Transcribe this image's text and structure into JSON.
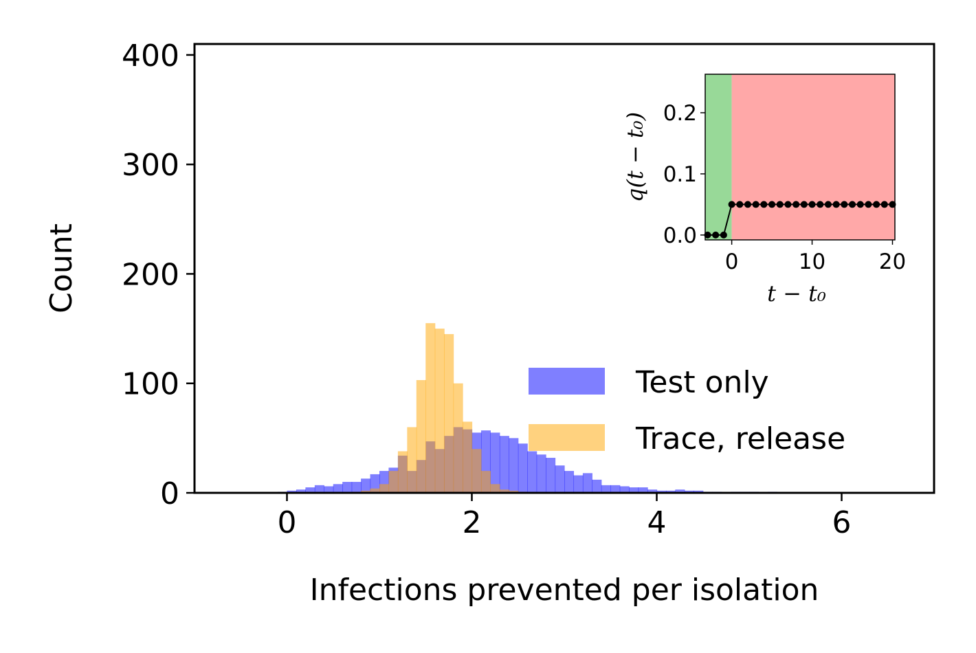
{
  "chart_data": [
    {
      "type": "histogram",
      "xlabel": "Infections prevented per isolation",
      "ylabel": "Count",
      "xlim": [
        -1.0,
        7.0
      ],
      "ylim": [
        0,
        410
      ],
      "xticks": [
        0,
        2,
        4,
        6
      ],
      "yticks": [
        0,
        100,
        200,
        300,
        400
      ],
      "bin_width": 0.1,
      "legend_position": "lower-right",
      "series": [
        {
          "name": "Test only",
          "color": "#0000ff",
          "alpha": 0.5,
          "bin_start": -0.1,
          "counts": [
            1,
            2,
            3,
            5,
            7,
            6,
            8,
            10,
            10,
            13,
            17,
            20,
            23,
            34,
            20,
            30,
            47,
            40,
            52,
            60,
            58,
            55,
            57,
            55,
            52,
            50,
            45,
            38,
            35,
            32,
            25,
            20,
            16,
            18,
            12,
            7,
            7,
            6,
            5,
            5,
            3,
            2,
            2,
            3,
            2,
            2,
            1,
            1,
            0,
            1,
            1,
            1,
            0,
            1,
            0,
            0,
            0,
            0,
            0,
            0,
            0,
            0,
            0,
            0,
            0,
            0,
            0,
            0,
            0,
            0,
            0,
            0,
            0,
            0,
            0,
            0,
            0,
            0,
            0,
            0,
            0,
            0,
            0,
            0,
            0,
            0,
            0,
            0,
            0,
            0,
            0,
            0,
            0,
            0
          ]
        },
        {
          "name": "Trace, release",
          "color": "#ffa500",
          "alpha": 0.5,
          "bin_start": 0.7,
          "counts": [
            1,
            2,
            4,
            8,
            20,
            38,
            60,
            103,
            155,
            150,
            145,
            100,
            65,
            40,
            20,
            8,
            3,
            2,
            1
          ]
        }
      ]
    },
    {
      "type": "line",
      "role": "inset",
      "xlabel": "t − t₀",
      "ylabel": "q(t − t₀)",
      "xlim": [
        -3.3,
        20.3
      ],
      "ylim": [
        -0.008,
        0.263
      ],
      "xticks": [
        0,
        10,
        20
      ],
      "yticks": [
        "0.0",
        "0.1",
        "0.2"
      ],
      "x": [
        -3,
        -2,
        -1,
        0,
        1,
        2,
        3,
        4,
        5,
        6,
        7,
        8,
        9,
        10,
        11,
        12,
        13,
        14,
        15,
        16,
        17,
        18,
        19,
        20
      ],
      "y": [
        0,
        0,
        0,
        0.05,
        0.05,
        0.05,
        0.05,
        0.05,
        0.05,
        0.05,
        0.05,
        0.05,
        0.05,
        0.05,
        0.05,
        0.05,
        0.05,
        0.05,
        0.05,
        0.05,
        0.05,
        0.05,
        0.05,
        0.05
      ],
      "shaded_regions": [
        {
          "from": -3.3,
          "to": 0,
          "color": "#98d998"
        },
        {
          "from": 0,
          "to": 20.3,
          "color": "#ffa8a8"
        }
      ]
    }
  ]
}
